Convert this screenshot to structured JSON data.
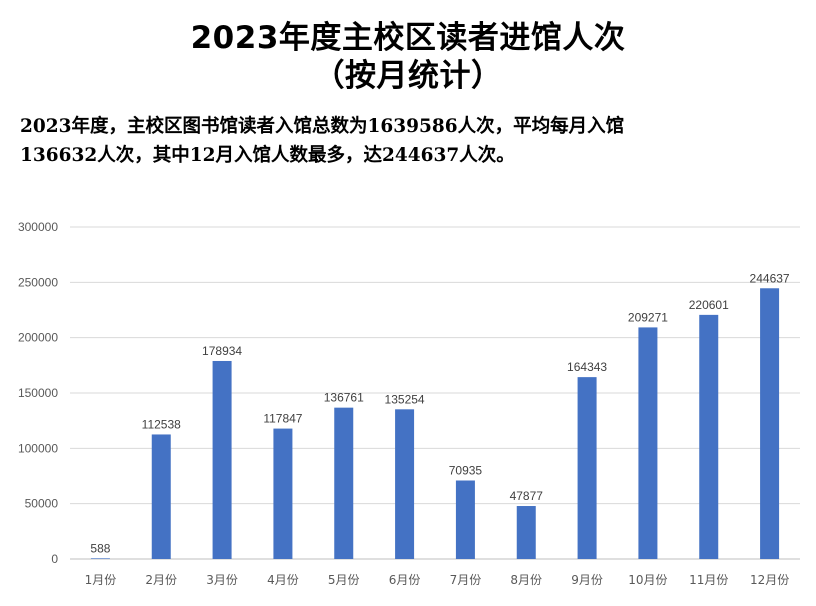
{
  "header": {
    "title_line1": "2023年度主校区读者进馆人次",
    "title_line2": "（按月统计）"
  },
  "summary": {
    "line1": "2023年度，主校区图书馆读者入馆总数为1639586人次，平均每月入馆",
    "line2": "136632人次，其中12月入馆人数最多，达244637人次。"
  },
  "chart_data": {
    "type": "bar",
    "categories": [
      "1月份",
      "2月份",
      "3月份",
      "4月份",
      "5月份",
      "6月份",
      "7月份",
      "8月份",
      "9月份",
      "10月份",
      "11月份",
      "12月份"
    ],
    "values": [
      588,
      112538,
      178934,
      117847,
      136761,
      135254,
      70935,
      47877,
      164343,
      209271,
      220601,
      244637
    ],
    "data_labels": [
      "588",
      "112538",
      "178934",
      "117847",
      "136761",
      "135254",
      "70935",
      "47877",
      "164343",
      "209271",
      "220601",
      "244637"
    ],
    "y_ticks": [
      0,
      50000,
      100000,
      150000,
      200000,
      250000,
      300000
    ],
    "y_tick_labels": [
      "0",
      "50000",
      "100000",
      "150000",
      "200000",
      "250000",
      "300000"
    ],
    "ylim": [
      0,
      300000
    ],
    "title": "",
    "xlabel": "",
    "ylabel": "",
    "grid": true,
    "legend": "none",
    "bar_color": "#4472C4",
    "grid_color": "#D9D9D9"
  }
}
